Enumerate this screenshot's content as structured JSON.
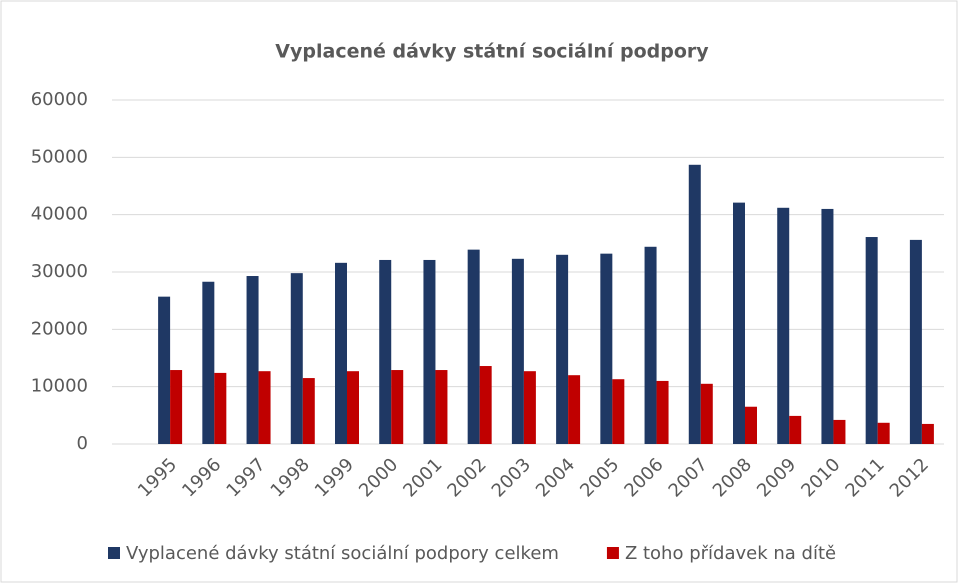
{
  "chart_data": {
    "type": "bar",
    "title": "Vyplacené dávky státní sociální podpory",
    "categories": [
      "1995",
      "1996",
      "1997",
      "1998",
      "1999",
      "2000",
      "2001",
      "2002",
      "2003",
      "2004",
      "2005",
      "2006",
      "2007",
      "2008",
      "2009",
      "2010",
      "2011",
      "2012"
    ],
    "series": [
      {
        "name": "Vyplacené dávky státní sociální podpory celkem",
        "color": "#1f3864",
        "values": [
          25700,
          28300,
          29300,
          29800,
          31600,
          32100,
          32100,
          33900,
          32300,
          33000,
          33200,
          34400,
          48700,
          42100,
          41200,
          41000,
          36100,
          35600
        ]
      },
      {
        "name": "Z toho přídavek na dítě",
        "color": "#c00000",
        "values": [
          12900,
          12400,
          12700,
          11500,
          12700,
          12900,
          12900,
          13600,
          12700,
          12000,
          11300,
          11000,
          10500,
          6500,
          4900,
          4200,
          3700,
          3500
        ]
      }
    ],
    "ylim": [
      0,
      60000
    ],
    "yticks": [
      0,
      10000,
      20000,
      30000,
      40000,
      50000,
      60000
    ],
    "grid": true,
    "legend": "bottom"
  }
}
